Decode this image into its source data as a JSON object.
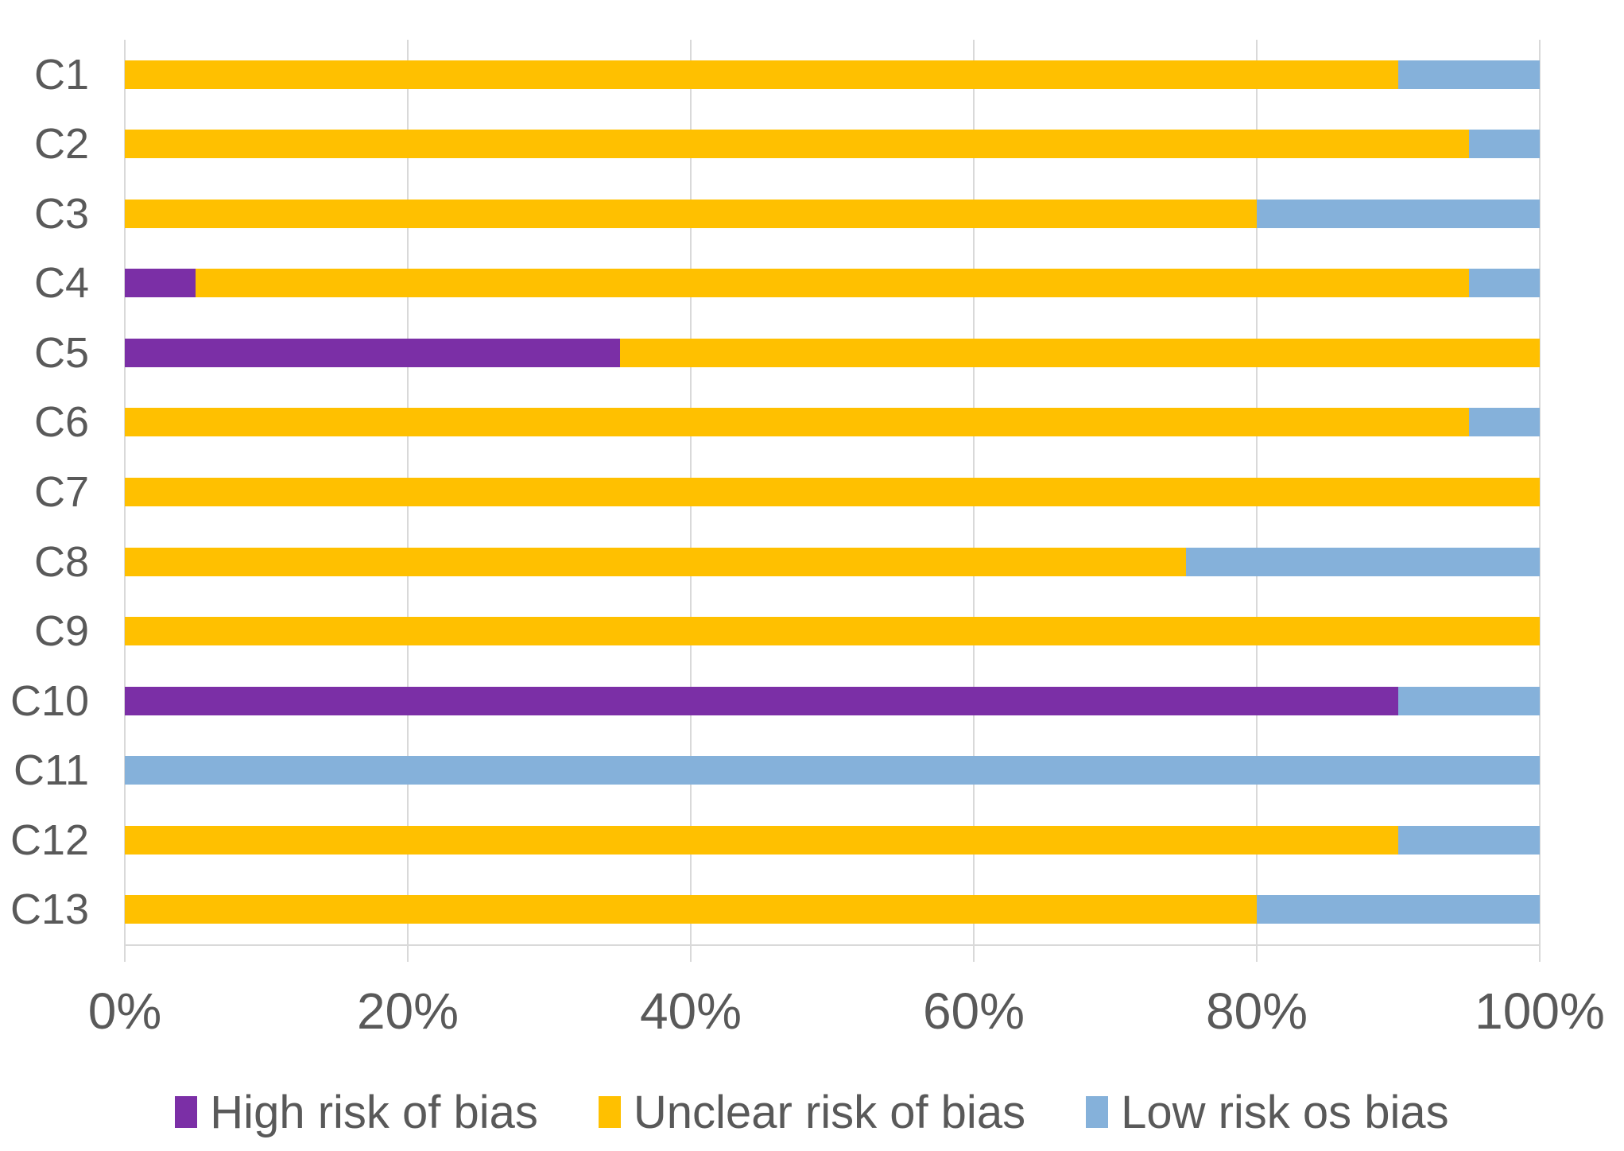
{
  "chart_data": {
    "type": "bar",
    "orientation": "horizontal",
    "stacked": true,
    "unit": "%",
    "categories": [
      "C1",
      "C2",
      "C3",
      "C4",
      "C5",
      "C6",
      "C7",
      "C8",
      "C9",
      "C10",
      "C11",
      "C12",
      "C13"
    ],
    "series": [
      {
        "name": "High risk of bias",
        "color": "#7b2fa6",
        "values": [
          0,
          0,
          0,
          5,
          35,
          0,
          0,
          0,
          0,
          90,
          0,
          0,
          0
        ]
      },
      {
        "name": "Unclear risk of bias",
        "color": "#ffc000",
        "values": [
          90,
          95,
          80,
          90,
          65,
          95,
          100,
          75,
          100,
          0,
          0,
          90,
          80
        ]
      },
      {
        "name": "Low risk os bias",
        "color": "#85b1da",
        "values": [
          10,
          5,
          20,
          5,
          0,
          5,
          0,
          25,
          0,
          10,
          100,
          10,
          20
        ]
      }
    ],
    "x_axis": {
      "range": [
        0,
        100
      ],
      "tick_labels": [
        "0%",
        "20%",
        "40%",
        "60%",
        "80%",
        "100%"
      ],
      "tick_values": [
        0,
        20,
        40,
        60,
        80,
        100
      ]
    },
    "grid": true,
    "legend_position": "bottom",
    "colors": {
      "text": "#595959",
      "gridline": "#d9d9d9",
      "background": "#ffffff"
    }
  }
}
